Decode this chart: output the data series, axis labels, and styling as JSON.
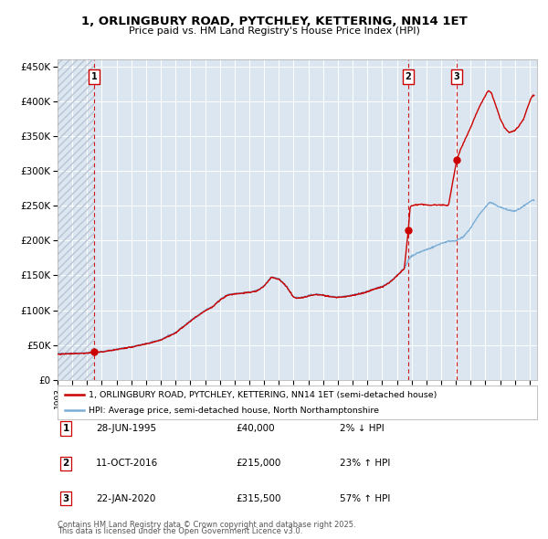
{
  "title1": "1, ORLINGBURY ROAD, PYTCHLEY, KETTERING, NN14 1ET",
  "title2": "Price paid vs. HM Land Registry's House Price Index (HPI)",
  "bg_color": "#dce6f0",
  "plot_bg_color": "#dce6f0",
  "grid_color": "#ffffff",
  "red_line_color": "#cc0000",
  "blue_line_color": "#7aaed6",
  "sale1_year": 1995.497,
  "sale1_price": 40000,
  "sale2_year": 2016.775,
  "sale2_price": 215000,
  "sale3_year": 2020.055,
  "sale3_price": 315500,
  "legend_label_red": "1, ORLINGBURY ROAD, PYTCHLEY, KETTERING, NN14 1ET (semi-detached house)",
  "legend_label_blue": "HPI: Average price, semi-detached house, North Northamptonshire",
  "table_rows": [
    {
      "num": "1",
      "date": "28-JUN-1995",
      "price": "£40,000",
      "hpi": "2% ↓ HPI"
    },
    {
      "num": "2",
      "date": "11-OCT-2016",
      "price": "£215,000",
      "hpi": "23% ↑ HPI"
    },
    {
      "num": "3",
      "date": "22-JAN-2020",
      "price": "£315,500",
      "hpi": "57% ↑ HPI"
    }
  ],
  "footnote1": "Contains HM Land Registry data © Crown copyright and database right 2025.",
  "footnote2": "This data is licensed under the Open Government Licence v3.0.",
  "ylim": [
    0,
    460000
  ],
  "yticks": [
    0,
    50000,
    100000,
    150000,
    200000,
    250000,
    300000,
    350000,
    400000,
    450000
  ],
  "ytick_labels": [
    "£0",
    "£50K",
    "£100K",
    "£150K",
    "£200K",
    "£250K",
    "£300K",
    "£350K",
    "£400K",
    "£450K"
  ],
  "xmin": 1993.0,
  "xmax": 2025.5
}
